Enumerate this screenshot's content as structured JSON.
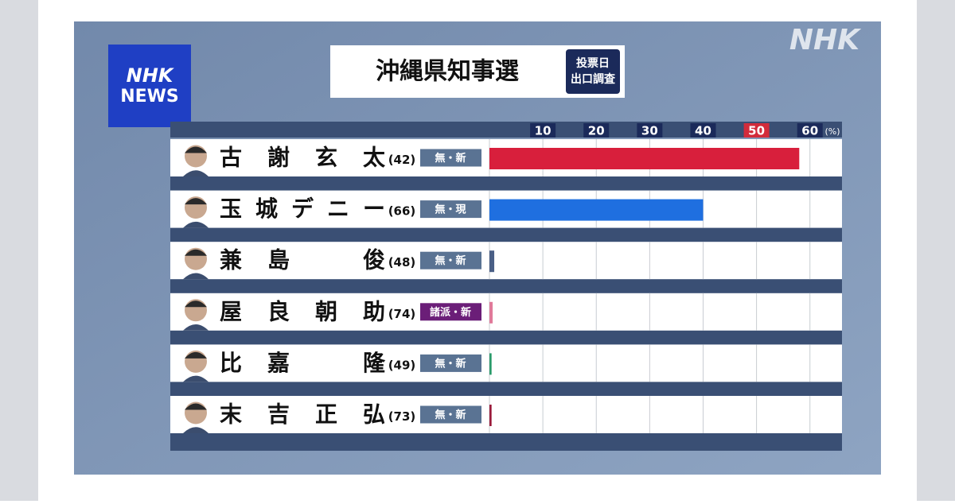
{
  "chart_data": {
    "type": "bar",
    "orientation": "horizontal",
    "title": "沖縄県知事選",
    "badge": [
      "投票日",
      "出口調査"
    ],
    "logo": [
      "NHK",
      "NEWS"
    ],
    "watermark": "NHK",
    "x_unit": "(%)",
    "xlim": [
      0,
      66
    ],
    "xticks": [
      10,
      20,
      30,
      40,
      50,
      60
    ],
    "xtick_colors": [
      "#1b2a5a",
      "#1b2a5a",
      "#1b2a5a",
      "#1b2a5a",
      "#d22b3b",
      "#1b2a5a"
    ],
    "grid": true,
    "candidates": [
      {
        "name": "古謝玄太",
        "age": "(42)",
        "party": "無・新",
        "party_color": "#5a7393",
        "color": "#d81f3c",
        "value": 58
      },
      {
        "name": "玉城デニー",
        "age": "(66)",
        "party": "無・現",
        "party_color": "#5a7393",
        "color": "#1f6fe0",
        "value": 40
      },
      {
        "name": "兼島俊",
        "age": "(48)",
        "party": "無・新",
        "party_color": "#5a7393",
        "color": "#4a5f86",
        "value": 0.9
      },
      {
        "name": "屋良朝助",
        "age": "(74)",
        "party": "諸派・新",
        "party_color": "#6b1e78",
        "color": "#e07a9a",
        "value": 0.6
      },
      {
        "name": "比嘉隆",
        "age": "(49)",
        "party": "無・新",
        "party_color": "#5a7393",
        "color": "#2a9a6a",
        "value": 0.4
      },
      {
        "name": "末吉正弘",
        "age": "(73)",
        "party": "無・新",
        "party_color": "#5a7393",
        "color": "#9a1a3a",
        "value": 0.4
      }
    ]
  }
}
